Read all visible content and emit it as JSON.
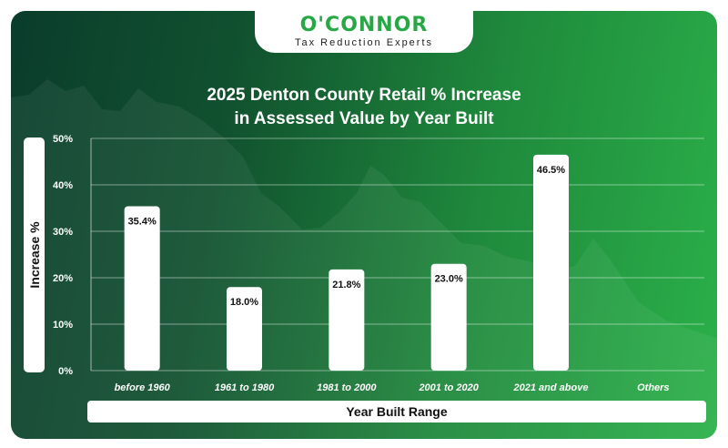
{
  "brand": {
    "name": "O'CONNOR",
    "tagline": "Tax Reduction Experts"
  },
  "colors": {
    "brand_green": "#27a844",
    "background_dark": "#0a3d2c",
    "background_light": "#2bb14a",
    "bar": "#ffffff"
  },
  "chart_data": {
    "type": "bar",
    "title_line1": "2025 Denton County Retail % Increase",
    "title_line2": "in Assessed Value by Year Built",
    "xlabel": "Year Built Range",
    "ylabel": "Increase %",
    "categories": [
      "before 1960",
      "1961 to 1980",
      "1981 to 2000",
      "2001 to 2020",
      "2021 and above",
      "Others"
    ],
    "values": [
      35.4,
      18.0,
      21.8,
      23.0,
      46.5,
      null
    ],
    "value_labels": [
      "35.4%",
      "18.0%",
      "21.8%",
      "23.0%",
      "46.5%",
      ""
    ],
    "ylim": [
      0,
      50
    ],
    "yticks": [
      "0%",
      "10%",
      "20%",
      "30%",
      "40%",
      "50%"
    ],
    "ytick_values": [
      0,
      10,
      20,
      30,
      40,
      50
    ],
    "grid": true,
    "legend": "none"
  }
}
